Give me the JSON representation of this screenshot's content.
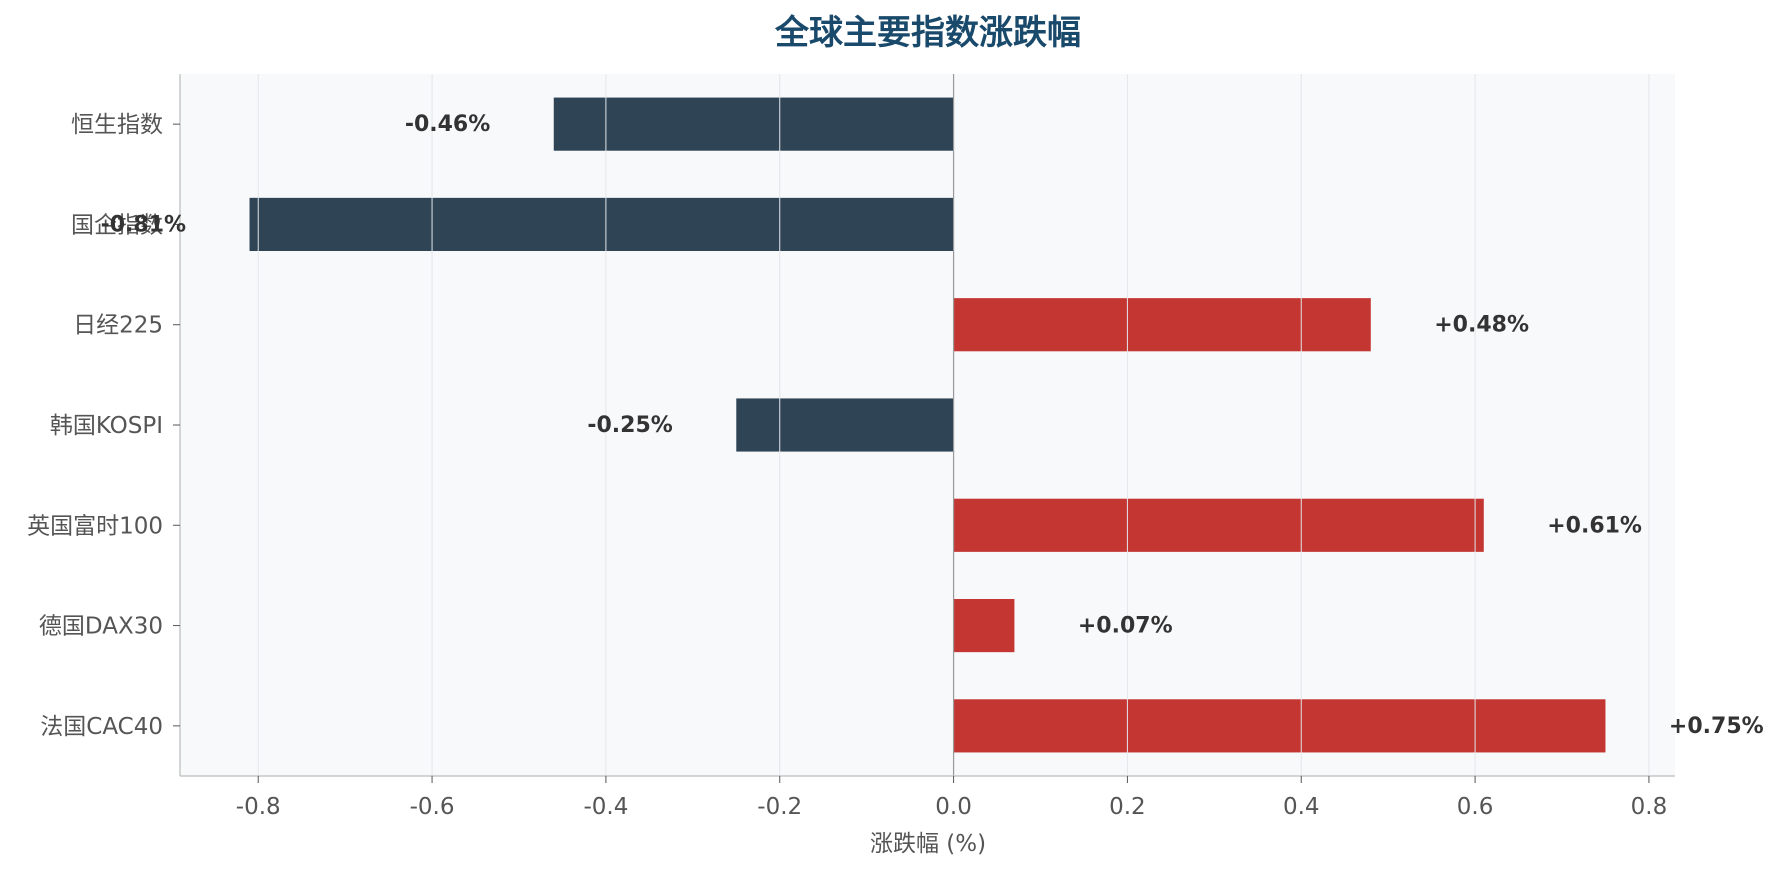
{
  "chart_data": {
    "type": "bar",
    "orientation": "horizontal",
    "title": "全球主要指数涨跌幅",
    "xlabel": "涨跌幅 (%)",
    "ylabel": "",
    "categories": [
      "恒生指数",
      "国企指数",
      "日经225",
      "韩国KOSPI",
      "英国富时100",
      "德国DAX30",
      "法国CAC40"
    ],
    "values": [
      -0.46,
      -0.81,
      0.48,
      -0.25,
      0.61,
      0.07,
      0.75
    ],
    "value_labels": [
      "-0.46%",
      "-0.81%",
      "+0.48%",
      "-0.25%",
      "+0.61%",
      "+0.07%",
      "+0.75%"
    ],
    "xlim": [
      -0.89,
      0.83
    ],
    "xticks": [
      -0.8,
      -0.6,
      -0.4,
      -0.2,
      0.0,
      0.2,
      0.4,
      0.6,
      0.8
    ],
    "xtick_labels": [
      "-0.8",
      "-0.6",
      "-0.4",
      "-0.2",
      "0.0",
      "0.2",
      "0.4",
      "0.6",
      "0.8"
    ],
    "grid": "vertical",
    "legend": "none"
  },
  "colors": {
    "positive": "#c43632",
    "negative": "#2f4454",
    "title": "#1a4a6b",
    "plot_background": "#f8f9fb",
    "grid": "#e3e6ea",
    "axis": "#bbbbbb",
    "zero_line": "#999999",
    "tick_text": "#555555",
    "value_text": "#333333"
  }
}
